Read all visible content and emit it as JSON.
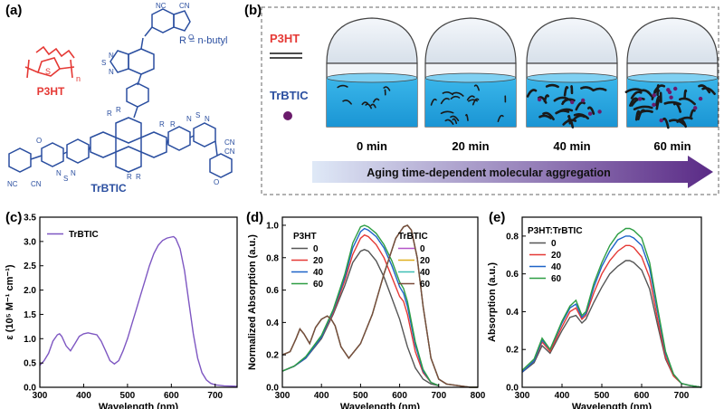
{
  "panels": {
    "a": "(a)",
    "b": "(b)",
    "c": "(c)",
    "d": "(d)",
    "e": "(e)"
  },
  "molecule": {
    "p3ht_label": "P3HT",
    "trbtic_label": "TrBTIC",
    "r_definition": "R = n-butyl",
    "polymer_repeat": "n",
    "atoms": {
      "S": "S",
      "N": "N",
      "O": "O",
      "NC": "NC",
      "CN": "CN",
      "R": "R"
    }
  },
  "schematic": {
    "legend_p3ht": "P3HT",
    "legend_trbtic": "TrBTIC",
    "times": [
      "0 min",
      "20 min",
      "40 min",
      "60 min"
    ],
    "arrow_text": "Aging time-dependent molecular aggregation",
    "colors": {
      "solution": "#1ea7e1",
      "dome_top": "#eef3f8",
      "fiber": "#1a1a1a",
      "dot": "#6a1b6b",
      "arrow_start": "#dfe9f7",
      "arrow_end": "#5a2a86"
    }
  },
  "chart_data": [
    {
      "id": "c",
      "type": "line",
      "xlabel": "Wavelength (nm)",
      "ylabel": "ε (10⁵ M⁻¹ cm⁻¹)",
      "xlim": [
        300,
        750
      ],
      "ylim": [
        0,
        3.5
      ],
      "xticks": [
        300,
        400,
        500,
        600,
        700
      ],
      "yticks": [
        0.0,
        0.5,
        1.0,
        1.5,
        2.0,
        2.5,
        3.0,
        3.5
      ],
      "legend": "top-left",
      "series": [
        {
          "name": "TrBTIC",
          "color": "#7e57c2",
          "x": [
            300,
            310,
            320,
            330,
            340,
            345,
            350,
            360,
            370,
            380,
            390,
            400,
            410,
            420,
            430,
            440,
            450,
            460,
            470,
            480,
            490,
            500,
            510,
            520,
            530,
            540,
            550,
            560,
            570,
            580,
            590,
            600,
            605,
            610,
            620,
            630,
            640,
            650,
            660,
            670,
            680,
            690,
            700,
            720,
            750
          ],
          "y": [
            0.45,
            0.55,
            0.7,
            0.95,
            1.08,
            1.1,
            1.05,
            0.85,
            0.75,
            0.9,
            1.05,
            1.1,
            1.12,
            1.1,
            1.08,
            0.95,
            0.75,
            0.55,
            0.48,
            0.55,
            0.75,
            1.0,
            1.3,
            1.6,
            1.9,
            2.2,
            2.5,
            2.75,
            2.92,
            3.02,
            3.07,
            3.09,
            3.1,
            3.06,
            2.85,
            2.4,
            1.75,
            1.1,
            0.6,
            0.3,
            0.15,
            0.08,
            0.05,
            0.03,
            0.02
          ]
        }
      ]
    },
    {
      "id": "d",
      "type": "line",
      "xlabel": "Wavelength (nm)",
      "ylabel": "Normalized Absorption (a.u.)",
      "xlim": [
        300,
        800
      ],
      "ylim": [
        0,
        1.05
      ],
      "xticks": [
        300,
        400,
        500,
        600,
        700,
        800
      ],
      "yticks": [
        0.0,
        0.2,
        0.4,
        0.6,
        0.8,
        1.0
      ],
      "legend_groups": [
        {
          "title": "P3HT",
          "entries": [
            "0",
            "20",
            "40",
            "60"
          ]
        },
        {
          "title": "TrBTIC",
          "entries": [
            "0",
            "20",
            "40",
            "60"
          ]
        }
      ],
      "series": [
        {
          "name": "0",
          "group": "P3HT",
          "color": "#555555",
          "x": [
            300,
            330,
            360,
            400,
            430,
            460,
            480,
            500,
            510,
            520,
            540,
            560,
            580,
            600,
            620,
            640,
            660,
            680,
            700
          ],
          "y": [
            0.1,
            0.13,
            0.18,
            0.3,
            0.45,
            0.63,
            0.77,
            0.84,
            0.85,
            0.84,
            0.78,
            0.68,
            0.55,
            0.42,
            0.25,
            0.12,
            0.05,
            0.02,
            0.01
          ]
        },
        {
          "name": "20",
          "group": "P3HT",
          "color": "#e53935",
          "x": [
            300,
            330,
            360,
            400,
            430,
            460,
            480,
            500,
            510,
            520,
            540,
            560,
            580,
            600,
            610,
            620,
            640,
            660,
            680,
            700
          ],
          "y": [
            0.1,
            0.13,
            0.18,
            0.31,
            0.46,
            0.66,
            0.82,
            0.92,
            0.94,
            0.93,
            0.88,
            0.8,
            0.68,
            0.56,
            0.53,
            0.45,
            0.22,
            0.09,
            0.03,
            0.01
          ]
        },
        {
          "name": "40",
          "group": "P3HT",
          "color": "#1e63c8",
          "x": [
            300,
            330,
            360,
            400,
            430,
            460,
            480,
            500,
            510,
            520,
            540,
            560,
            580,
            600,
            610,
            620,
            640,
            660,
            680,
            700
          ],
          "y": [
            0.1,
            0.13,
            0.18,
            0.31,
            0.47,
            0.68,
            0.86,
            0.96,
            0.98,
            0.97,
            0.93,
            0.86,
            0.75,
            0.62,
            0.58,
            0.5,
            0.26,
            0.1,
            0.03,
            0.01
          ]
        },
        {
          "name": "60",
          "group": "P3HT",
          "color": "#2e9e44",
          "x": [
            300,
            330,
            360,
            400,
            430,
            460,
            480,
            500,
            510,
            520,
            540,
            560,
            580,
            600,
            610,
            620,
            640,
            660,
            680,
            700
          ],
          "y": [
            0.1,
            0.13,
            0.19,
            0.32,
            0.48,
            0.7,
            0.89,
            0.99,
            1.0,
            0.99,
            0.95,
            0.88,
            0.78,
            0.65,
            0.61,
            0.53,
            0.28,
            0.11,
            0.03,
            0.01
          ]
        },
        {
          "name": "0",
          "group": "TrBTIC",
          "color": "#b455c8",
          "x": [
            300,
            320,
            335,
            345,
            355,
            370,
            385,
            400,
            415,
            425,
            435,
            450,
            470,
            500,
            530,
            560,
            590,
            610,
            620,
            630,
            645,
            660,
            680,
            700,
            720,
            750,
            780,
            800
          ],
          "y": [
            0.2,
            0.22,
            0.3,
            0.36,
            0.33,
            0.27,
            0.37,
            0.42,
            0.44,
            0.42,
            0.38,
            0.25,
            0.18,
            0.27,
            0.45,
            0.7,
            0.92,
            0.99,
            1.0,
            0.97,
            0.8,
            0.5,
            0.18,
            0.05,
            0.02,
            0.01,
            0.0,
            0.0
          ]
        },
        {
          "name": "20",
          "group": "TrBTIC",
          "color": "#e0b020",
          "x": [
            300,
            320,
            335,
            345,
            355,
            370,
            385,
            400,
            415,
            425,
            435,
            450,
            470,
            500,
            530,
            560,
            590,
            610,
            620,
            630,
            645,
            660,
            680,
            700,
            720,
            750,
            780,
            800
          ],
          "y": [
            0.2,
            0.22,
            0.3,
            0.36,
            0.33,
            0.27,
            0.37,
            0.42,
            0.44,
            0.42,
            0.38,
            0.25,
            0.18,
            0.27,
            0.45,
            0.7,
            0.92,
            0.99,
            1.0,
            0.97,
            0.8,
            0.5,
            0.18,
            0.05,
            0.02,
            0.01,
            0.0,
            0.0
          ]
        },
        {
          "name": "40",
          "group": "TrBTIC",
          "color": "#3fbfb5",
          "x": [
            300,
            320,
            335,
            345,
            355,
            370,
            385,
            400,
            415,
            425,
            435,
            450,
            470,
            500,
            530,
            560,
            590,
            610,
            620,
            630,
            645,
            660,
            680,
            700,
            720,
            750,
            780,
            800
          ],
          "y": [
            0.2,
            0.22,
            0.3,
            0.36,
            0.33,
            0.27,
            0.37,
            0.42,
            0.44,
            0.42,
            0.38,
            0.25,
            0.18,
            0.27,
            0.45,
            0.7,
            0.92,
            0.99,
            1.0,
            0.97,
            0.8,
            0.5,
            0.18,
            0.05,
            0.02,
            0.01,
            0.0,
            0.0
          ]
        },
        {
          "name": "60",
          "group": "TrBTIC",
          "color": "#7a4b3a",
          "x": [
            300,
            320,
            335,
            345,
            355,
            370,
            385,
            400,
            415,
            425,
            435,
            450,
            470,
            500,
            530,
            560,
            590,
            610,
            620,
            630,
            645,
            660,
            680,
            700,
            720,
            750,
            780,
            800
          ],
          "y": [
            0.2,
            0.22,
            0.3,
            0.36,
            0.33,
            0.27,
            0.37,
            0.42,
            0.44,
            0.42,
            0.38,
            0.25,
            0.18,
            0.27,
            0.45,
            0.7,
            0.92,
            0.99,
            1.0,
            0.97,
            0.8,
            0.5,
            0.18,
            0.05,
            0.02,
            0.01,
            0.0,
            0.0
          ]
        }
      ]
    },
    {
      "id": "e",
      "type": "line",
      "xlabel": "Wavelength (nm)",
      "ylabel": "Absorption (a.u.)",
      "xlim": [
        300,
        750
      ],
      "ylim": [
        0,
        0.9
      ],
      "xticks": [
        300,
        400,
        500,
        600,
        700
      ],
      "yticks": [
        0.0,
        0.2,
        0.4,
        0.6,
        0.8
      ],
      "legend_title": "P3HT:TrBTIC",
      "series": [
        {
          "name": "0",
          "color": "#555555",
          "x": [
            300,
            330,
            350,
            370,
            400,
            420,
            435,
            450,
            460,
            480,
            500,
            520,
            540,
            560,
            570,
            580,
            600,
            620,
            640,
            660,
            680,
            700,
            720,
            750
          ],
          "y": [
            0.08,
            0.13,
            0.22,
            0.18,
            0.3,
            0.37,
            0.38,
            0.34,
            0.36,
            0.45,
            0.53,
            0.6,
            0.64,
            0.67,
            0.67,
            0.66,
            0.62,
            0.52,
            0.33,
            0.15,
            0.06,
            0.02,
            0.01,
            0.0
          ]
        },
        {
          "name": "20",
          "color": "#e53935",
          "x": [
            300,
            330,
            350,
            370,
            400,
            420,
            435,
            450,
            460,
            480,
            500,
            520,
            540,
            560,
            570,
            580,
            600,
            620,
            640,
            660,
            680,
            700,
            720,
            750
          ],
          "y": [
            0.08,
            0.14,
            0.24,
            0.19,
            0.32,
            0.4,
            0.42,
            0.36,
            0.38,
            0.5,
            0.6,
            0.67,
            0.72,
            0.75,
            0.75,
            0.74,
            0.69,
            0.58,
            0.36,
            0.16,
            0.06,
            0.02,
            0.01,
            0.0
          ]
        },
        {
          "name": "40",
          "color": "#1e63c8",
          "x": [
            300,
            330,
            350,
            370,
            400,
            420,
            435,
            450,
            460,
            480,
            500,
            520,
            540,
            560,
            570,
            580,
            600,
            620,
            640,
            660,
            680,
            700,
            720,
            750
          ],
          "y": [
            0.08,
            0.14,
            0.25,
            0.2,
            0.34,
            0.42,
            0.44,
            0.37,
            0.39,
            0.53,
            0.64,
            0.72,
            0.78,
            0.8,
            0.8,
            0.79,
            0.75,
            0.63,
            0.4,
            0.18,
            0.07,
            0.02,
            0.01,
            0.0
          ]
        },
        {
          "name": "60",
          "color": "#2e9e44",
          "x": [
            300,
            330,
            350,
            370,
            400,
            420,
            435,
            450,
            460,
            480,
            500,
            520,
            540,
            560,
            570,
            580,
            600,
            620,
            640,
            660,
            680,
            700,
            720,
            750
          ],
          "y": [
            0.09,
            0.15,
            0.26,
            0.2,
            0.35,
            0.43,
            0.46,
            0.38,
            0.4,
            0.55,
            0.66,
            0.75,
            0.81,
            0.84,
            0.84,
            0.83,
            0.79,
            0.66,
            0.42,
            0.19,
            0.07,
            0.02,
            0.01,
            0.0
          ]
        }
      ]
    }
  ]
}
